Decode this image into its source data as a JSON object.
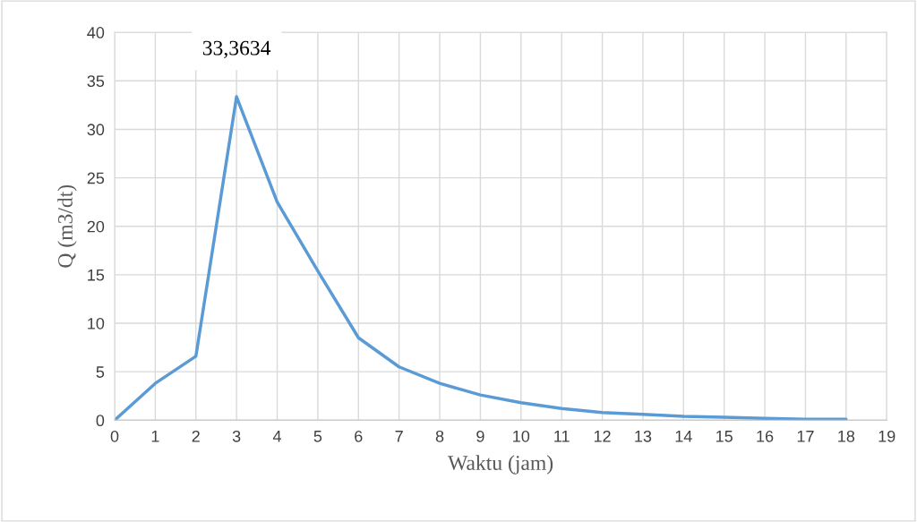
{
  "chart_data": {
    "type": "line",
    "xlabel": "Waktu (jam)",
    "ylabel": "Q (m3/dt)",
    "x": [
      0,
      1,
      2,
      3,
      4,
      5,
      6,
      7,
      8,
      9,
      10,
      11,
      12,
      13,
      14,
      15,
      16,
      17,
      18
    ],
    "series": [
      {
        "color": "#5b9bd5",
        "values": [
          0,
          3.8,
          6.6,
          33.3634,
          22.5,
          15.4,
          8.5,
          5.5,
          3.8,
          2.6,
          1.8,
          1.2,
          0.8,
          0.6,
          0.4,
          0.3,
          0.2,
          0.1,
          0.1
        ]
      }
    ],
    "annotations": [
      {
        "text": "33,3634",
        "x": 3,
        "y": 33.3634
      }
    ],
    "xlim": [
      0,
      19
    ],
    "xticks": [
      0,
      1,
      2,
      3,
      4,
      5,
      6,
      7,
      8,
      9,
      10,
      11,
      12,
      13,
      14,
      15,
      16,
      17,
      18,
      19
    ],
    "ylim": [
      0,
      40
    ],
    "yticks": [
      0,
      5,
      10,
      15,
      20,
      25,
      30,
      35,
      40
    ],
    "grid": true,
    "marker": "none",
    "line_style": "solid"
  }
}
